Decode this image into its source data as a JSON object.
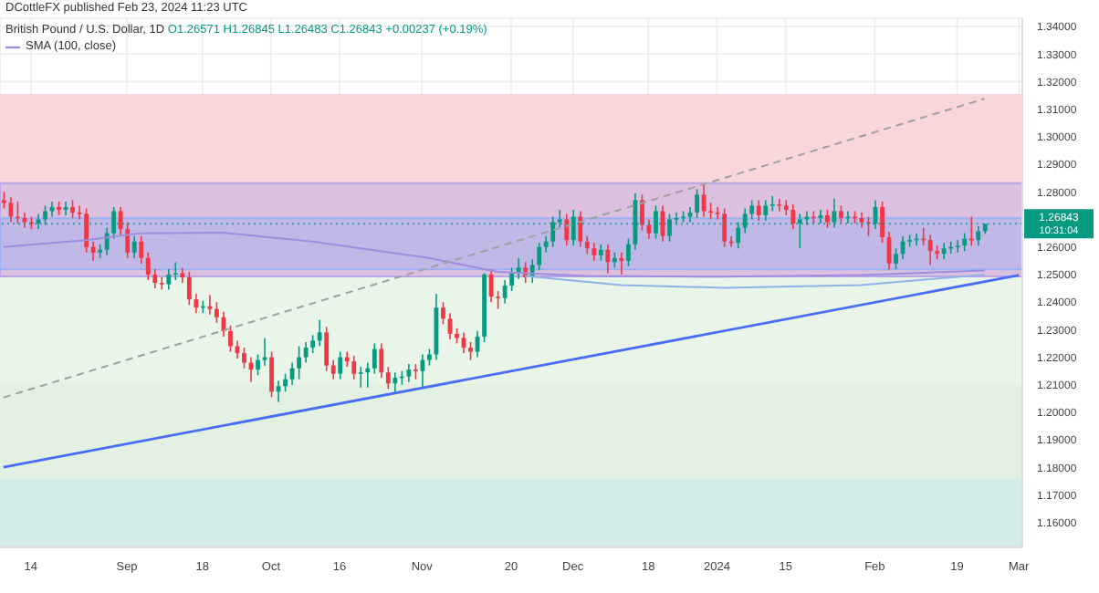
{
  "chart_data": {
    "type": "candlestick",
    "title": "British Pound / U.S. Dollar, 1D",
    "subtitle": "O1.26571 H1.26845 L1.26483 C1.26843 +0.00237 (+0.19%)",
    "annotations": [
      "DCottleFX published Feb 23, 2024 11:23 UTC",
      "10:31:04"
    ],
    "categories": [
      null,
      null,
      null,
      null,
      "14",
      null,
      null,
      null,
      null,
      null,
      null,
      null,
      null,
      null,
      null,
      null,
      null,
      null,
      "Sep",
      null,
      null,
      null,
      null,
      null,
      null,
      null,
      null,
      null,
      null,
      "18",
      null,
      null,
      null,
      null,
      null,
      null,
      null,
      null,
      null,
      "Oct",
      null,
      null,
      null,
      null,
      null,
      null,
      null,
      null,
      null,
      "16",
      null,
      null,
      null,
      null,
      null,
      null,
      null,
      null,
      null,
      null,
      null,
      "Nov",
      null,
      null,
      null,
      null,
      null,
      null,
      null,
      null,
      null,
      null,
      null,
      null,
      "20",
      null,
      null,
      null,
      null,
      null,
      null,
      null,
      null,
      "Dec",
      null,
      null,
      null,
      null,
      null,
      null,
      null,
      null,
      null,
      null,
      "18",
      null,
      null,
      null,
      null,
      null,
      null,
      null,
      null,
      null,
      "2024",
      null,
      null,
      null,
      null,
      null,
      null,
      null,
      null,
      null,
      "15",
      null,
      null,
      null,
      null,
      null,
      null,
      null,
      null,
      null,
      null,
      null,
      null,
      "Feb",
      null,
      null,
      null,
      null,
      null,
      null,
      null,
      null,
      null,
      null,
      null,
      "19",
      null,
      null,
      null,
      null,
      null,
      null,
      null,
      null,
      "Mar"
    ],
    "ohlc": [
      [
        1.277,
        1.28,
        1.274,
        1.276
      ],
      [
        1.276,
        1.278,
        1.269,
        1.271
      ],
      [
        1.271,
        1.2765,
        1.2685,
        1.2705
      ],
      [
        1.2705,
        1.2725,
        1.267,
        1.269
      ],
      [
        1.269,
        1.271,
        1.2665,
        1.2685
      ],
      [
        1.2685,
        1.272,
        1.2665,
        1.27
      ],
      [
        1.27,
        1.275,
        1.268,
        1.273
      ],
      [
        1.273,
        1.2765,
        1.271,
        1.2745
      ],
      [
        1.2745,
        1.2765,
        1.2715,
        1.2735
      ],
      [
        1.2735,
        1.2765,
        1.2715,
        1.2745
      ],
      [
        1.2745,
        1.277,
        1.2705,
        1.2725
      ],
      [
        1.2725,
        1.275,
        1.27,
        1.272
      ],
      [
        1.272,
        1.274,
        1.258,
        1.26
      ],
      [
        1.26,
        1.262,
        1.255,
        1.258
      ],
      [
        1.258,
        1.261,
        1.256,
        1.259
      ],
      [
        1.259,
        1.267,
        1.257,
        1.265
      ],
      [
        1.265,
        1.2745,
        1.263,
        1.273
      ],
      [
        1.273,
        1.2745,
        1.2645,
        1.2665
      ],
      [
        1.2665,
        1.269,
        1.256,
        1.258
      ],
      [
        1.258,
        1.264,
        1.256,
        1.262
      ],
      [
        1.262,
        1.264,
        1.254,
        1.256
      ],
      [
        1.256,
        1.258,
        1.248,
        1.25
      ],
      [
        1.25,
        1.252,
        1.245,
        1.247
      ],
      [
        1.247,
        1.249,
        1.2445,
        1.2465
      ],
      [
        1.2465,
        1.252,
        1.2445,
        1.25
      ],
      [
        1.25,
        1.2545,
        1.248,
        1.2505
      ],
      [
        1.2505,
        1.2525,
        1.247,
        1.249
      ],
      [
        1.249,
        1.251,
        1.239,
        1.241
      ],
      [
        1.241,
        1.243,
        1.236,
        1.238
      ],
      [
        1.238,
        1.2405,
        1.236,
        1.2385
      ],
      [
        1.2385,
        1.2425,
        1.2355,
        1.2375
      ],
      [
        1.2375,
        1.24,
        1.2325,
        1.2345
      ],
      [
        1.2345,
        1.2365,
        1.2275,
        1.2295
      ],
      [
        1.2295,
        1.2315,
        1.222,
        1.224
      ],
      [
        1.224,
        1.226,
        1.2195,
        1.2215
      ],
      [
        1.2215,
        1.2235,
        1.216,
        1.218
      ],
      [
        1.218,
        1.22,
        1.211,
        1.2155
      ],
      [
        1.2155,
        1.221,
        1.2135,
        1.219
      ],
      [
        1.219,
        1.227,
        1.217,
        1.22
      ],
      [
        1.22,
        1.222,
        1.2055,
        1.2075
      ],
      [
        1.2075,
        1.2115,
        1.2037,
        1.2095
      ],
      [
        1.2095,
        1.214,
        1.2075,
        1.212
      ],
      [
        1.212,
        1.218,
        1.21,
        1.216
      ],
      [
        1.216,
        1.224,
        1.212,
        1.22
      ],
      [
        1.22,
        1.2255,
        1.218,
        1.2235
      ],
      [
        1.2235,
        1.228,
        1.2215,
        1.226
      ],
      [
        1.226,
        1.2335,
        1.224,
        1.229
      ],
      [
        1.229,
        1.231,
        1.215,
        1.217
      ],
      [
        1.217,
        1.219,
        1.212,
        1.214
      ],
      [
        1.214,
        1.222,
        1.212,
        1.22
      ],
      [
        1.22,
        1.222,
        1.2165,
        1.2185
      ],
      [
        1.2185,
        1.2205,
        1.212,
        1.214
      ],
      [
        1.214,
        1.2165,
        1.209,
        1.2145
      ],
      [
        1.2145,
        1.218,
        1.209,
        1.216
      ],
      [
        1.216,
        1.225,
        1.214,
        1.223
      ],
      [
        1.223,
        1.225,
        1.2125,
        1.2145
      ],
      [
        1.2145,
        1.2165,
        1.2085,
        1.2105
      ],
      [
        1.2105,
        1.2145,
        1.207,
        1.2125
      ],
      [
        1.2125,
        1.215,
        1.21,
        1.213
      ],
      [
        1.213,
        1.2175,
        1.211,
        1.2155
      ],
      [
        1.2155,
        1.2175,
        1.212,
        1.215
      ],
      [
        1.215,
        1.221,
        1.209,
        1.219
      ],
      [
        1.219,
        1.223,
        1.217,
        1.221
      ],
      [
        1.221,
        1.243,
        1.219,
        1.238
      ],
      [
        1.238,
        1.24,
        1.232,
        1.234
      ],
      [
        1.234,
        1.236,
        1.2265,
        1.2285
      ],
      [
        1.2285,
        1.2305,
        1.225,
        1.227
      ],
      [
        1.227,
        1.229,
        1.2215,
        1.2235
      ],
      [
        1.2235,
        1.2255,
        1.219,
        1.222
      ],
      [
        1.222,
        1.2295,
        1.22,
        1.2275
      ],
      [
        1.2275,
        1.2505,
        1.2255,
        1.25
      ],
      [
        1.25,
        1.252,
        1.24,
        1.242
      ],
      [
        1.242,
        1.244,
        1.2375,
        1.2415
      ],
      [
        1.2415,
        1.248,
        1.2395,
        1.246
      ],
      [
        1.246,
        1.2525,
        1.244,
        1.2505
      ],
      [
        1.2505,
        1.256,
        1.2485,
        1.2525
      ],
      [
        1.2525,
        1.2545,
        1.247,
        1.249
      ],
      [
        1.249,
        1.2555,
        1.247,
        1.2535
      ],
      [
        1.2535,
        1.2615,
        1.2515,
        1.26
      ],
      [
        1.26,
        1.264,
        1.258,
        1.262
      ],
      [
        1.262,
        1.271,
        1.26,
        1.269
      ],
      [
        1.269,
        1.2735,
        1.267,
        1.27
      ],
      [
        1.27,
        1.272,
        1.2605,
        1.2625
      ],
      [
        1.2625,
        1.2735,
        1.2605,
        1.271
      ],
      [
        1.271,
        1.273,
        1.26,
        1.262
      ],
      [
        1.262,
        1.264,
        1.2575,
        1.2595
      ],
      [
        1.2595,
        1.2615,
        1.255,
        1.257
      ],
      [
        1.257,
        1.261,
        1.255,
        1.259
      ],
      [
        1.259,
        1.261,
        1.2505,
        1.2545
      ],
      [
        1.2545,
        1.258,
        1.2525,
        1.256
      ],
      [
        1.256,
        1.258,
        1.25,
        1.255
      ],
      [
        1.255,
        1.263,
        1.253,
        1.261
      ],
      [
        1.261,
        1.2795,
        1.259,
        1.277
      ],
      [
        1.277,
        1.279,
        1.266,
        1.268
      ],
      [
        1.268,
        1.27,
        1.263,
        1.265
      ],
      [
        1.265,
        1.275,
        1.263,
        1.273
      ],
      [
        1.273,
        1.275,
        1.262,
        1.264
      ],
      [
        1.264,
        1.272,
        1.262,
        1.27
      ],
      [
        1.27,
        1.2725,
        1.268,
        1.2705
      ],
      [
        1.2705,
        1.273,
        1.269,
        1.271
      ],
      [
        1.271,
        1.2745,
        1.269,
        1.2725
      ],
      [
        1.2725,
        1.281,
        1.2705,
        1.279
      ],
      [
        1.279,
        1.2827,
        1.271,
        1.273
      ],
      [
        1.273,
        1.276,
        1.27,
        1.2725
      ],
      [
        1.2725,
        1.2745,
        1.27,
        1.272
      ],
      [
        1.272,
        1.274,
        1.26,
        1.262
      ],
      [
        1.262,
        1.264,
        1.26,
        1.2615
      ],
      [
        1.2615,
        1.269,
        1.2595,
        1.267
      ],
      [
        1.267,
        1.274,
        1.265,
        1.272
      ],
      [
        1.272,
        1.277,
        1.27,
        1.275
      ],
      [
        1.275,
        1.277,
        1.2695,
        1.2715
      ],
      [
        1.2715,
        1.277,
        1.2695,
        1.275
      ],
      [
        1.275,
        1.2785,
        1.273,
        1.2755
      ],
      [
        1.2755,
        1.2775,
        1.273,
        1.275
      ],
      [
        1.275,
        1.277,
        1.2715,
        1.2735
      ],
      [
        1.2735,
        1.2755,
        1.2665,
        1.2685
      ],
      [
        1.2685,
        1.272,
        1.2595,
        1.27
      ],
      [
        1.27,
        1.273,
        1.268,
        1.271
      ],
      [
        1.271,
        1.273,
        1.2685,
        1.2705
      ],
      [
        1.2705,
        1.2735,
        1.2685,
        1.2715
      ],
      [
        1.2715,
        1.2735,
        1.267,
        1.269
      ],
      [
        1.269,
        1.2775,
        1.267,
        1.273
      ],
      [
        1.273,
        1.275,
        1.2685,
        1.2705
      ],
      [
        1.2705,
        1.273,
        1.2685,
        1.271
      ],
      [
        1.271,
        1.273,
        1.2685,
        1.2705
      ],
      [
        1.2705,
        1.2725,
        1.267,
        1.269
      ],
      [
        1.269,
        1.271,
        1.264,
        1.2685
      ],
      [
        1.2685,
        1.277,
        1.2665,
        1.2745
      ],
      [
        1.2745,
        1.2765,
        1.2615,
        1.2635
      ],
      [
        1.2635,
        1.2655,
        1.2518,
        1.254
      ],
      [
        1.254,
        1.2595,
        1.252,
        1.2575
      ],
      [
        1.2575,
        1.264,
        1.2555,
        1.262
      ],
      [
        1.262,
        1.2645,
        1.26,
        1.2625
      ],
      [
        1.2625,
        1.265,
        1.2605,
        1.263
      ],
      [
        1.263,
        1.267,
        1.2605,
        1.2625
      ],
      [
        1.2625,
        1.2645,
        1.2535,
        1.2585
      ],
      [
        1.2585,
        1.2605,
        1.2555,
        1.2575
      ],
      [
        1.2575,
        1.2615,
        1.2555,
        1.2595
      ],
      [
        1.2595,
        1.262,
        1.2575,
        1.26
      ],
      [
        1.26,
        1.2625,
        1.258,
        1.2605
      ],
      [
        1.2605,
        1.265,
        1.2585,
        1.263
      ],
      [
        1.263,
        1.271,
        1.2605,
        1.2625
      ],
      [
        1.2625,
        1.2675,
        1.2605,
        1.2657
      ],
      [
        1.26571,
        1.26845,
        1.26483,
        1.26843
      ],
      null,
      null,
      null,
      null,
      null
    ],
    "series": [
      {
        "name": "SMA (100, close)",
        "type": "line",
        "color": "#9c8fe0",
        "values": [
          1.26,
          null,
          null,
          null,
          null,
          null,
          null,
          null,
          null,
          null,
          null,
          null,
          1.2625,
          null,
          null,
          null,
          null,
          null,
          null,
          null,
          1.265,
          null,
          null,
          null,
          null,
          null,
          null,
          null,
          null,
          null,
          null,
          null,
          1.2652,
          null,
          null,
          null,
          null,
          null,
          null,
          null,
          null,
          null,
          null,
          null,
          null,
          1.262,
          null,
          null,
          null,
          null,
          null,
          null,
          null,
          null,
          null,
          null,
          null,
          null,
          null,
          null,
          null,
          null,
          1.256,
          null,
          null,
          null,
          null,
          null,
          null,
          null,
          null,
          null,
          1.251,
          null,
          null,
          null,
          null,
          null,
          null,
          null,
          null,
          null,
          null,
          null,
          null,
          1.2495,
          null,
          null,
          null,
          null,
          null,
          null,
          null,
          null,
          null,
          null,
          null,
          null,
          null,
          null,
          null,
          null,
          null,
          null,
          null,
          1.2492,
          null,
          null,
          null,
          null,
          null,
          null,
          null,
          null,
          null,
          null,
          null,
          null,
          null,
          null,
          null,
          null,
          null,
          null,
          null,
          1.2498,
          null,
          null,
          null,
          null,
          null,
          null,
          null,
          null,
          null,
          null,
          null,
          null,
          null,
          null,
          null,
          null,
          null,
          1.2515,
          null,
          null,
          null,
          null,
          null
        ]
      },
      {
        "type": "line",
        "color": "#4a6cf7",
        "values": [
          1.1801,
          null,
          null,
          null,
          null,
          null,
          null,
          null,
          null,
          null,
          null,
          null,
          null,
          null,
          null,
          null,
          null,
          null,
          null,
          null,
          null,
          null,
          null,
          null,
          null,
          null,
          null,
          null,
          null,
          null,
          null,
          null,
          null,
          null,
          null,
          null,
          null,
          null,
          null,
          null,
          null,
          null,
          null,
          null,
          null,
          null,
          null,
          null,
          null,
          null,
          null,
          null,
          null,
          null,
          null,
          null,
          null,
          null,
          null,
          null,
          null,
          null,
          null,
          null,
          null,
          null,
          null,
          null,
          null,
          null,
          null,
          null,
          null,
          null,
          null,
          null,
          null,
          null,
          null,
          null,
          null,
          null,
          null,
          null,
          null,
          null,
          null,
          null,
          null,
          null,
          null,
          null,
          null,
          null,
          null,
          null,
          null,
          null,
          null,
          null,
          null,
          null,
          null,
          null,
          null,
          null,
          null,
          null,
          null,
          null,
          null,
          null,
          null,
          null,
          null,
          null,
          null,
          null,
          null,
          null,
          null,
          null,
          null,
          null,
          null,
          null,
          null,
          null,
          null,
          null,
          null,
          null,
          null,
          null,
          null,
          null,
          null,
          null,
          null,
          null,
          null,
          null,
          null,
          null,
          null,
          null,
          null,
          null,
          1.2498
        ]
      },
      {
        "type": "line",
        "color": "#a0a0a0",
        "line_style": "dashed",
        "values": [
          1.2054,
          null,
          null,
          null,
          null,
          null,
          null,
          null,
          null,
          null,
          null,
          null,
          null,
          null,
          null,
          null,
          null,
          null,
          null,
          null,
          null,
          null,
          null,
          null,
          null,
          null,
          null,
          null,
          null,
          null,
          null,
          null,
          null,
          null,
          null,
          null,
          null,
          null,
          null,
          null,
          null,
          null,
          null,
          null,
          null,
          null,
          null,
          null,
          null,
          null,
          null,
          null,
          null,
          null,
          null,
          null,
          null,
          null,
          null,
          null,
          null,
          null,
          null,
          null,
          null,
          null,
          null,
          null,
          null,
          null,
          null,
          null,
          null,
          null,
          null,
          null,
          null,
          null,
          null,
          null,
          null,
          null,
          null,
          null,
          null,
          null,
          null,
          null,
          null,
          null,
          null,
          null,
          null,
          null,
          null,
          null,
          null,
          null,
          null,
          null,
          null,
          null,
          null,
          null,
          null,
          null,
          null,
          null,
          null,
          null,
          null,
          null,
          null,
          null,
          null,
          null,
          null,
          null,
          null,
          null,
          null,
          null,
          null,
          null,
          null,
          null,
          null,
          null,
          null,
          null,
          null,
          null,
          null,
          null,
          null,
          null,
          null,
          null,
          null,
          null,
          null,
          null,
          null,
          1.3138,
          null,
          null,
          null,
          null,
          null
        ]
      },
      {
        "type": "line",
        "color": "#8fb3e8",
        "values": [
          null,
          null,
          null,
          null,
          null,
          null,
          null,
          null,
          null,
          null,
          null,
          null,
          null,
          null,
          null,
          null,
          null,
          null,
          null,
          null,
          null,
          null,
          null,
          null,
          null,
          null,
          null,
          null,
          null,
          null,
          null,
          null,
          null,
          null,
          null,
          null,
          null,
          null,
          null,
          null,
          null,
          null,
          null,
          null,
          null,
          null,
          null,
          null,
          null,
          null,
          null,
          null,
          null,
          null,
          null,
          null,
          null,
          null,
          null,
          null,
          null,
          null,
          null,
          null,
          null,
          null,
          null,
          null,
          null,
          null,
          null,
          null,
          null,
          null,
          null,
          null,
          1.2495,
          null,
          null,
          null,
          null,
          null,
          null,
          null,
          null,
          null,
          null,
          null,
          null,
          null,
          1.2462,
          null,
          null,
          null,
          null,
          null,
          null,
          null,
          null,
          null,
          null,
          null,
          null,
          null,
          null,
          1.2452,
          null,
          null,
          null,
          null,
          null,
          null,
          null,
          null,
          null,
          null,
          null,
          null,
          null,
          null,
          null,
          null,
          null,
          null,
          null,
          1.2462,
          null,
          null,
          null,
          null,
          null,
          null,
          null,
          null,
          null,
          null,
          null,
          null,
          null,
          null,
          null,
          null,
          null,
          1.25,
          null,
          null,
          null,
          null,
          null
        ]
      }
    ],
    "bands": [
      {
        "axis": "y",
        "from": 1.2493,
        "to": 1.3152,
        "color": "#f9d6d9"
      },
      {
        "axis": "y",
        "from": 1.21,
        "to": 1.2493,
        "color": "#e9f5e9"
      },
      {
        "axis": "y",
        "from": 1.1755,
        "to": 1.21,
        "color": "#e2f1e1"
      },
      {
        "axis": "y",
        "from": 1.151,
        "to": 1.1755,
        "color": "#d3ece8"
      },
      {
        "axis": "y",
        "from": 1.2493,
        "to": 1.2832,
        "color": "#b7a6e6"
      },
      {
        "axis": "y",
        "from": 1.2519,
        "to": 1.2704,
        "color": "#9db0f2"
      }
    ],
    "ref_lines": [
      {
        "axis": "y",
        "value": 1.26843,
        "label": "1.26843",
        "color": "#089981",
        "line_style": "dotted"
      }
    ],
    "ylim": [
      1.151,
      1.343
    ],
    "yticks": [
      {
        "value": 1.16,
        "label": "1.16000"
      },
      {
        "value": 1.17,
        "label": "1.17000"
      },
      {
        "value": 1.18,
        "label": "1.18000"
      },
      {
        "value": 1.19,
        "label": "1.19000"
      },
      {
        "value": 1.2,
        "label": "1.20000"
      },
      {
        "value": 1.21,
        "label": "1.21000"
      },
      {
        "value": 1.22,
        "label": "1.22000"
      },
      {
        "value": 1.23,
        "label": "1.23000"
      },
      {
        "value": 1.24,
        "label": "1.24000"
      },
      {
        "value": 1.25,
        "label": "1.25000"
      },
      {
        "value": 1.26,
        "label": "1.26000"
      },
      {
        "value": 1.27,
        "label": null
      },
      {
        "value": 1.28,
        "label": "1.28000"
      },
      {
        "value": 1.29,
        "label": "1.29000"
      },
      {
        "value": 1.3,
        "label": "1.30000"
      },
      {
        "value": 1.31,
        "label": "1.31000"
      },
      {
        "value": 1.32,
        "label": "1.32000"
      },
      {
        "value": 1.33,
        "label": "1.33000"
      },
      {
        "value": 1.34,
        "label": "1.34000"
      }
    ],
    "grid": true,
    "legend": "top left",
    "marker": "none"
  }
}
